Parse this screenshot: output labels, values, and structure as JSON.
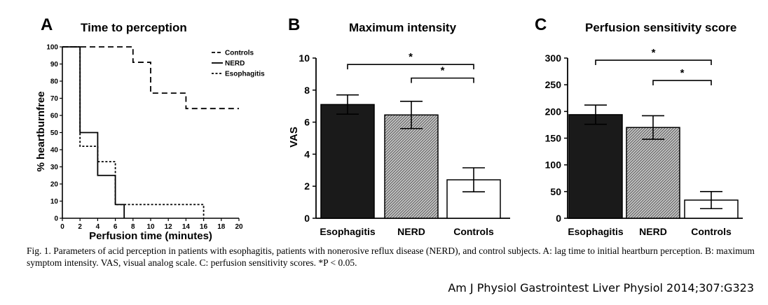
{
  "chart_data": [
    {
      "panel": "A",
      "type": "line",
      "title": "Time to perception",
      "xlabel": "Perfusion time (minutes)",
      "ylabel": "% heartburnfree",
      "xlim": [
        0,
        20
      ],
      "ylim": [
        0,
        100
      ],
      "xticks": [
        "0",
        "2",
        "4",
        "6",
        "8",
        "10",
        "12",
        "14",
        "16",
        "18",
        "20"
      ],
      "yticks": [
        "0",
        "10",
        "20",
        "30",
        "40",
        "50",
        "60",
        "70",
        "80",
        "90",
        "100"
      ],
      "step": true,
      "legend_position": "top-right",
      "series": [
        {
          "name": "Controls",
          "dash": "long-dash",
          "x": [
            0,
            8,
            10,
            14,
            20
          ],
          "y": [
            100,
            91,
            73,
            64,
            64
          ]
        },
        {
          "name": "NERD",
          "dash": "solid",
          "x": [
            0,
            2,
            4,
            6,
            7
          ],
          "y": [
            100,
            50,
            25,
            8,
            0
          ]
        },
        {
          "name": "Esophagitis",
          "dash": "short-dash",
          "x": [
            0,
            2,
            4,
            6,
            16
          ],
          "y": [
            100,
            42,
            33,
            8,
            0
          ]
        }
      ]
    },
    {
      "panel": "B",
      "type": "bar",
      "title": "Maximum intensity",
      "ylabel": "VAS",
      "xlabel": "",
      "ylim": [
        0,
        10
      ],
      "yticks": [
        "0",
        "2",
        "4",
        "6",
        "8",
        "10"
      ],
      "categories": [
        "Esophagitis",
        "NERD",
        "Controls"
      ],
      "values": [
        7.1,
        6.45,
        2.4
      ],
      "errors": [
        0.6,
        0.85,
        0.75
      ],
      "fills": [
        "#1a1a1a",
        "hatch",
        "#ffffff"
      ],
      "significance": [
        {
          "from": 0,
          "to": 2,
          "level": 9.6,
          "label": "*"
        },
        {
          "from": 1,
          "to": 2,
          "level": 8.75,
          "label": "*"
        }
      ]
    },
    {
      "panel": "C",
      "type": "bar",
      "title": "Perfusion sensitivity score",
      "ylabel": "",
      "xlabel": "",
      "ylim": [
        0,
        300
      ],
      "yticks": [
        "0",
        "50",
        "100",
        "150",
        "200",
        "250",
        "300"
      ],
      "categories": [
        "Esophagitis",
        "NERD",
        "Controls"
      ],
      "values": [
        194,
        170,
        34
      ],
      "errors": [
        18,
        22,
        16
      ],
      "fills": [
        "#1a1a1a",
        "hatch",
        "#ffffff"
      ],
      "significance": [
        {
          "from": 0,
          "to": 2,
          "level": 296,
          "label": "*"
        },
        {
          "from": 1,
          "to": 2,
          "level": 258,
          "label": "*"
        }
      ]
    }
  ],
  "caption": "Fig. 1. Parameters of acid perception in patients with esophagitis, patients with nonerosive reflux disease (NERD), and control subjects. A: lag time to initial heartburn perception. B: maximum symptom intensity. VAS, visual analog scale. C: perfusion sensitivity scores. *P < 0.05.",
  "citation": "Am J Physiol Gastrointest Liver Physiol 2014;307:G323"
}
